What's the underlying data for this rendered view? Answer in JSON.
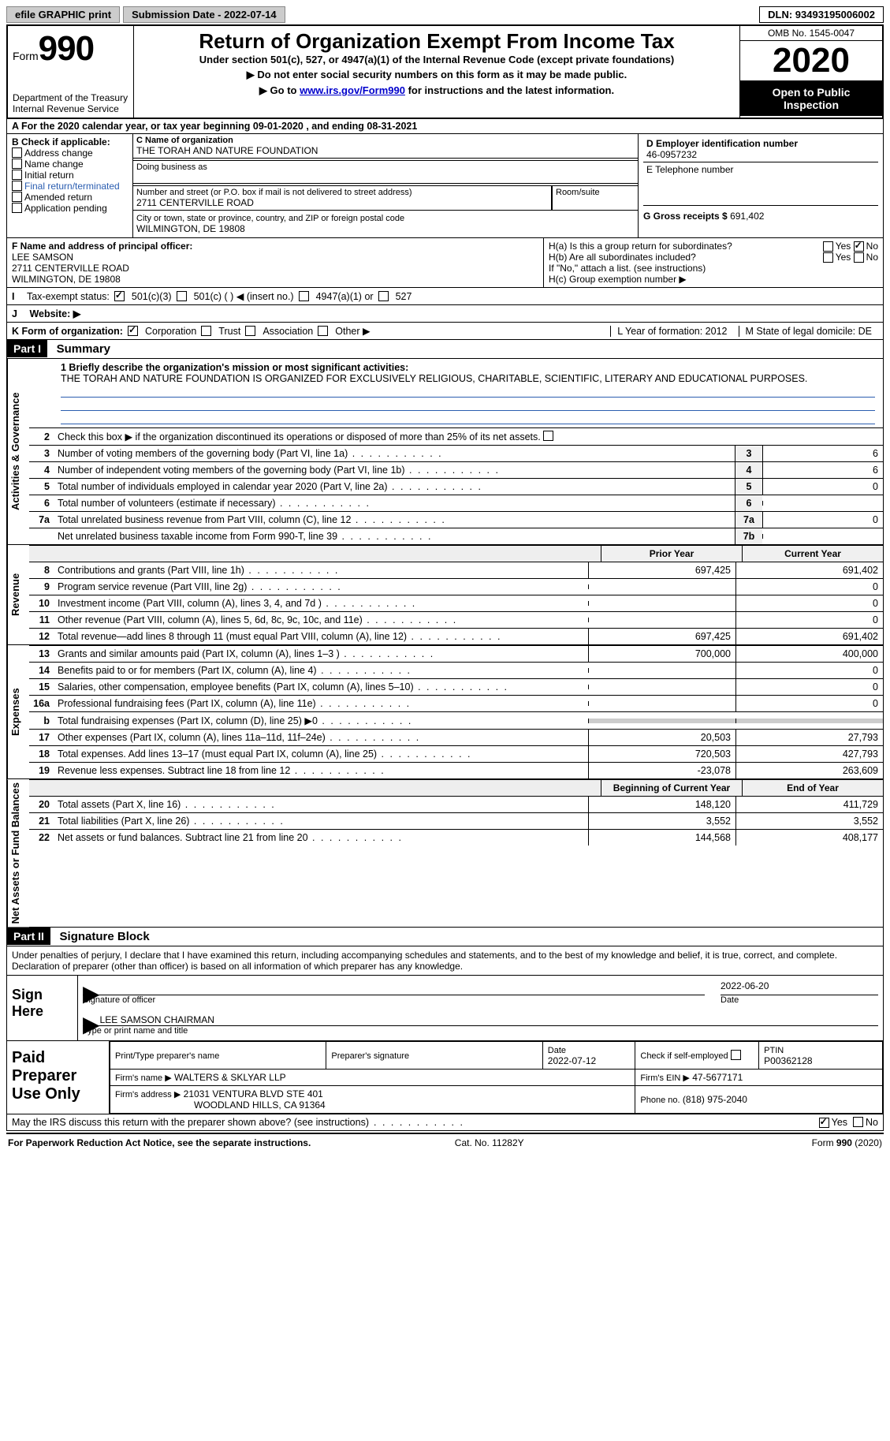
{
  "topbar": {
    "efile": "efile GRAPHIC print",
    "submission": "Submission Date - 2022-07-14",
    "dln": "DLN: 93493195006002"
  },
  "header": {
    "form_word": "Form",
    "form_num": "990",
    "dept": "Department of the Treasury\nInternal Revenue Service",
    "title": "Return of Organization Exempt From Income Tax",
    "subtitle": "Under section 501(c), 527, or 4947(a)(1) of the Internal Revenue Code (except private foundations)",
    "note1": "▶ Do not enter social security numbers on this form as it may be made public.",
    "note2_pre": "▶ Go to ",
    "note2_link": "www.irs.gov/Form990",
    "note2_post": " for instructions and the latest information.",
    "omb": "OMB No. 1545-0047",
    "year": "2020",
    "open": "Open to Public Inspection"
  },
  "rowA": "A For the 2020 calendar year, or tax year beginning 09-01-2020    , and ending 08-31-2021",
  "boxB": {
    "label": "B Check if applicable:",
    "items": [
      "Address change",
      "Name change",
      "Initial return",
      "Final return/terminated",
      "Amended return",
      "Application pending"
    ]
  },
  "boxC": {
    "label": "C Name of organization",
    "name": "THE TORAH AND NATURE FOUNDATION",
    "dba_label": "Doing business as",
    "addr_label": "Number and street (or P.O. box if mail is not delivered to street address)",
    "room_label": "Room/suite",
    "addr": "2711 CENTERVILLE ROAD",
    "city_label": "City or town, state or province, country, and ZIP or foreign postal code",
    "city": "WILMINGTON, DE  19808"
  },
  "boxD": {
    "label": "D Employer identification number",
    "val": "46-0957232"
  },
  "boxE": {
    "label": "E Telephone number"
  },
  "boxG": {
    "label": "G Gross receipts $",
    "val": "691,402"
  },
  "boxF": {
    "label": "F  Name and address of principal officer:",
    "name": "LEE SAMSON",
    "addr1": "2711 CENTERVILLE ROAD",
    "addr2": "WILMINGTON, DE  19808"
  },
  "boxH": {
    "a": "H(a)  Is this a group return for subordinates?",
    "b": "H(b)  Are all subordinates included?",
    "bnote": "If \"No,\" attach a list. (see instructions)",
    "c": "H(c)  Group exemption number ▶",
    "yes": "Yes",
    "no": "No"
  },
  "rowI": {
    "label": "Tax-exempt status:",
    "o1": "501(c)(3)",
    "o2": "501(c) (  ) ◀ (insert no.)",
    "o3": "4947(a)(1) or",
    "o4": "527"
  },
  "rowJ": {
    "label": "Website: ▶"
  },
  "rowK": {
    "label": "K Form of organization:",
    "o1": "Corporation",
    "o2": "Trust",
    "o3": "Association",
    "o4": "Other ▶",
    "L": "L Year of formation: 2012",
    "M": "M State of legal domicile: DE"
  },
  "part1": {
    "part": "Part I",
    "title": "Summary",
    "q1": "1 Briefly describe the organization's mission or most significant activities:",
    "mission": "THE TORAH AND NATURE FOUNDATION IS ORGANIZED FOR EXCLUSIVELY RELIGIOUS, CHARITABLE, SCIENTIFIC, LITERARY AND EDUCATIONAL PURPOSES.",
    "q2": "Check this box ▶     if the organization discontinued its operations or disposed of more than 25% of its net assets.",
    "side1": "Activities & Governance",
    "side2": "Revenue",
    "side3": "Expenses",
    "side4": "Net Assets or Fund Balances",
    "rows_gov": [
      {
        "n": "3",
        "t": "Number of voting members of the governing body (Part VI, line 1a)",
        "c": "3",
        "v": "6"
      },
      {
        "n": "4",
        "t": "Number of independent voting members of the governing body (Part VI, line 1b)",
        "c": "4",
        "v": "6"
      },
      {
        "n": "5",
        "t": "Total number of individuals employed in calendar year 2020 (Part V, line 2a)",
        "c": "5",
        "v": "0"
      },
      {
        "n": "6",
        "t": "Total number of volunteers (estimate if necessary)",
        "c": "6",
        "v": ""
      },
      {
        "n": "7a",
        "t": "Total unrelated business revenue from Part VIII, column (C), line 12",
        "c": "7a",
        "v": "0"
      },
      {
        "n": "",
        "t": "Net unrelated business taxable income from Form 990-T, line 39",
        "c": "7b",
        "v": ""
      }
    ],
    "col_prior": "Prior Year",
    "col_curr": "Current Year",
    "rows_rev": [
      {
        "n": "8",
        "t": "Contributions and grants (Part VIII, line 1h)",
        "p": "697,425",
        "c": "691,402"
      },
      {
        "n": "9",
        "t": "Program service revenue (Part VIII, line 2g)",
        "p": "",
        "c": "0"
      },
      {
        "n": "10",
        "t": "Investment income (Part VIII, column (A), lines 3, 4, and 7d )",
        "p": "",
        "c": "0"
      },
      {
        "n": "11",
        "t": "Other revenue (Part VIII, column (A), lines 5, 6d, 8c, 9c, 10c, and 11e)",
        "p": "",
        "c": "0"
      },
      {
        "n": "12",
        "t": "Total revenue—add lines 8 through 11 (must equal Part VIII, column (A), line 12)",
        "p": "697,425",
        "c": "691,402"
      }
    ],
    "rows_exp": [
      {
        "n": "13",
        "t": "Grants and similar amounts paid (Part IX, column (A), lines 1–3 )",
        "p": "700,000",
        "c": "400,000"
      },
      {
        "n": "14",
        "t": "Benefits paid to or for members (Part IX, column (A), line 4)",
        "p": "",
        "c": "0"
      },
      {
        "n": "15",
        "t": "Salaries, other compensation, employee benefits (Part IX, column (A), lines 5–10)",
        "p": "",
        "c": "0"
      },
      {
        "n": "16a",
        "t": "Professional fundraising fees (Part IX, column (A), line 11e)",
        "p": "",
        "c": "0"
      },
      {
        "n": "b",
        "t": "Total fundraising expenses (Part IX, column (D), line 25) ▶0",
        "p": "GRAY",
        "c": "GRAY"
      },
      {
        "n": "17",
        "t": "Other expenses (Part IX, column (A), lines 11a–11d, 11f–24e)",
        "p": "20,503",
        "c": "27,793"
      },
      {
        "n": "18",
        "t": "Total expenses. Add lines 13–17 (must equal Part IX, column (A), line 25)",
        "p": "720,503",
        "c": "427,793"
      },
      {
        "n": "19",
        "t": "Revenue less expenses. Subtract line 18 from line 12",
        "p": "-23,078",
        "c": "263,609"
      }
    ],
    "col_beg": "Beginning of Current Year",
    "col_end": "End of Year",
    "rows_net": [
      {
        "n": "20",
        "t": "Total assets (Part X, line 16)",
        "p": "148,120",
        "c": "411,729"
      },
      {
        "n": "21",
        "t": "Total liabilities (Part X, line 26)",
        "p": "3,552",
        "c": "3,552"
      },
      {
        "n": "22",
        "t": "Net assets or fund balances. Subtract line 21 from line 20",
        "p": "144,568",
        "c": "408,177"
      }
    ]
  },
  "part2": {
    "part": "Part II",
    "title": "Signature Block",
    "disclaimer": "Under penalties of perjury, I declare that I have examined this return, including accompanying schedules and statements, and to the best of my knowledge and belief, it is true, correct, and complete. Declaration of preparer (other than officer) is based on all information of which preparer has any knowledge.",
    "sign_here": "Sign Here",
    "sig_officer": "Signature of officer",
    "sig_date": "Date",
    "sig_date_val": "2022-06-20",
    "officer": "LEE SAMSON CHAIRMAN",
    "type_name": "Type or print name and title",
    "paid": "Paid Preparer Use Only",
    "pt_name": "Print/Type preparer's name",
    "pt_sig": "Preparer's signature",
    "pt_date": "Date",
    "pt_date_val": "2022-07-12",
    "pt_check": "Check        if self-employed",
    "ptin_l": "PTIN",
    "ptin": "P00362128",
    "firm_name_l": "Firm's name    ▶",
    "firm_name": "WALTERS & SKLYAR LLP",
    "firm_ein_l": "Firm's EIN ▶",
    "firm_ein": "47-5677171",
    "firm_addr_l": "Firm's address ▶",
    "firm_addr1": "21031 VENTURA BLVD STE 401",
    "firm_addr2": "WOODLAND HILLS, CA  91364",
    "phone_l": "Phone no.",
    "phone": "(818) 975-2040",
    "discuss": "May the IRS discuss this return with the preparer shown above? (see instructions)",
    "yes": "Yes",
    "no": "No"
  },
  "footer": {
    "left": "For Paperwork Reduction Act Notice, see the separate instructions.",
    "mid": "Cat. No. 11282Y",
    "right": "Form 990 (2020)"
  }
}
